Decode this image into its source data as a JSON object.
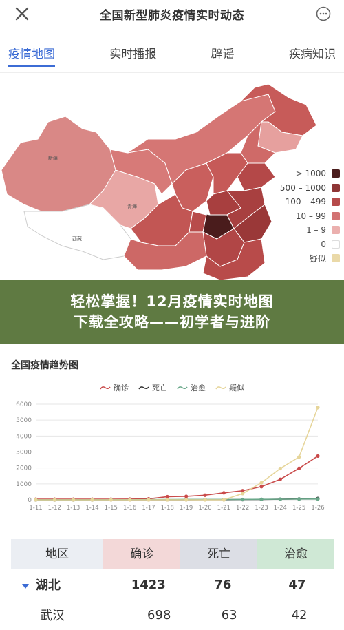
{
  "header": {
    "title": "全国新型肺炎疫情实时动态"
  },
  "tabs": [
    {
      "label": "疫情地图",
      "active": true
    },
    {
      "label": "实时播报"
    },
    {
      "label": "辟谣"
    },
    {
      "label": "疾病知识"
    }
  ],
  "map": {
    "labels": {
      "xizang": "西藏",
      "qinghai": "青海",
      "xinjiang": "新疆"
    },
    "legend": [
      {
        "label": "> 1000",
        "color": "#4a1c1c"
      },
      {
        "label": "500 – 1000",
        "color": "#8e3535"
      },
      {
        "label": "100 – 499",
        "color": "#b54a4a"
      },
      {
        "label": "10 – 99",
        "color": "#d27272"
      },
      {
        "label": "1 – 9",
        "color": "#ebb0ae"
      },
      {
        "label": "0",
        "color": "#ffffff"
      },
      {
        "label": "疑似",
        "color": "#ead9a8"
      }
    ]
  },
  "banner": {
    "line1": "轻松掌握！12月疫情实时地图",
    "line2": "下载全攻略——初学者与进阶"
  },
  "chart_data": {
    "type": "line",
    "title": "全国疫情趋势图",
    "categories": [
      "1-11",
      "1-12",
      "1-13",
      "1-14",
      "1-15",
      "1-16",
      "1-17",
      "1-18",
      "1-19",
      "1-20",
      "1-21",
      "1-22",
      "1-23",
      "1-24",
      "1-25",
      "1-26"
    ],
    "ylim": [
      0,
      6000
    ],
    "yticks": [
      0,
      1000,
      2000,
      3000,
      4000,
      5000,
      6000
    ],
    "series": [
      {
        "name": "确诊",
        "color": "#c94a4a",
        "values": [
          41,
          41,
          41,
          41,
          41,
          45,
          62,
          198,
          218,
          291,
          440,
          571,
          830,
          1287,
          1975,
          2744
        ]
      },
      {
        "name": "死亡",
        "color": "#333333",
        "values": [
          1,
          1,
          1,
          1,
          2,
          2,
          2,
          3,
          4,
          6,
          9,
          17,
          25,
          41,
          56,
          80
        ]
      },
      {
        "name": "治愈",
        "color": "#6aa88a",
        "values": [
          0,
          0,
          0,
          0,
          5,
          8,
          12,
          17,
          25,
          25,
          25,
          25,
          34,
          38,
          49,
          51
        ]
      },
      {
        "name": "疑似",
        "color": "#e6d59a",
        "values": [
          0,
          0,
          0,
          0,
          0,
          0,
          0,
          0,
          0,
          0,
          0,
          393,
          1072,
          1965,
          2684,
          5794
        ]
      }
    ]
  },
  "table": {
    "headers": [
      "地区",
      "确诊",
      "死亡",
      "治愈"
    ],
    "rows": [
      {
        "name": "湖北",
        "confirmed": "1423",
        "dead": "76",
        "cured": "47"
      },
      {
        "name": "武汉",
        "confirmed": "698",
        "dead": "63",
        "cured": "42"
      }
    ]
  }
}
